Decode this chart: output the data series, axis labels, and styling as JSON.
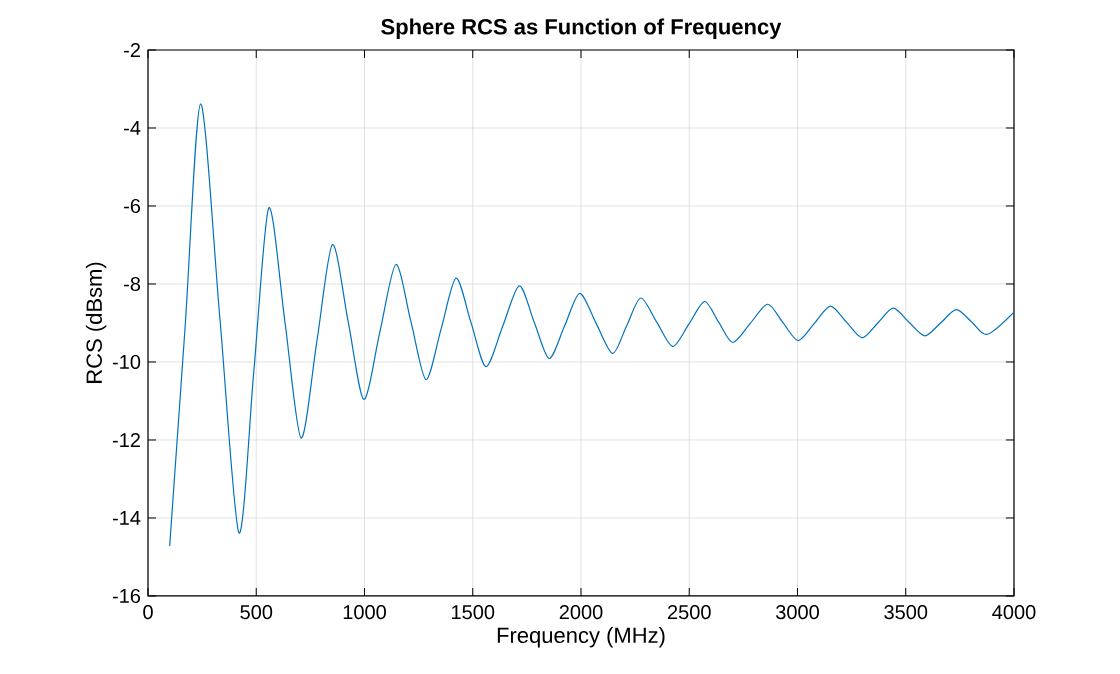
{
  "chart_data": {
    "type": "line",
    "title": "Sphere RCS as Function of Frequency",
    "xlabel": "Frequency (MHz)",
    "ylabel": "RCS (dBsm)",
    "x": [
      100,
      172,
      243,
      332,
      420,
      489,
      558,
      633,
      707,
      780,
      852,
      925,
      997,
      1071,
      1145,
      1215,
      1284,
      1354,
      1423,
      1492,
      1561,
      1638,
      1715,
      1784,
      1853,
      1924,
      1994,
      2070,
      2146,
      2211,
      2276,
      2350,
      2424,
      2498,
      2571,
      2636,
      2701,
      2782,
      2862,
      2933,
      3003,
      3078,
      3152,
      3226,
      3299,
      3371,
      3442,
      3515,
      3588,
      3661,
      3734,
      3806,
      3877,
      4000
    ],
    "series": [
      {
        "color": "#0072bd",
        "values": [
          -14.72,
          -9.05,
          -3.38,
          -8.88,
          -14.38,
          -10.22,
          -6.05,
          -9.0,
          -11.95,
          -9.47,
          -6.99,
          -8.98,
          -10.96,
          -9.23,
          -7.5,
          -8.98,
          -10.45,
          -9.15,
          -7.85,
          -8.99,
          -10.12,
          -9.09,
          -8.05,
          -8.98,
          -9.91,
          -9.08,
          -8.24,
          -9.01,
          -9.78,
          -9.07,
          -8.36,
          -8.98,
          -9.6,
          -9.03,
          -8.45,
          -8.98,
          -9.5,
          -9.01,
          -8.52,
          -8.99,
          -9.45,
          -9.01,
          -8.57,
          -8.98,
          -9.38,
          -9.0,
          -8.62,
          -8.98,
          -9.33,
          -9.0,
          -8.66,
          -8.98,
          -9.29,
          -8.72
        ]
      }
    ],
    "xlim": [
      0,
      4000
    ],
    "ylim": [
      -16,
      -2
    ],
    "xticks": [
      0,
      500,
      1000,
      1500,
      2000,
      2500,
      3000,
      3500,
      4000
    ],
    "yticks": [
      -16,
      -14,
      -12,
      -10,
      -8,
      -6,
      -4,
      -2
    ],
    "grid": true
  }
}
